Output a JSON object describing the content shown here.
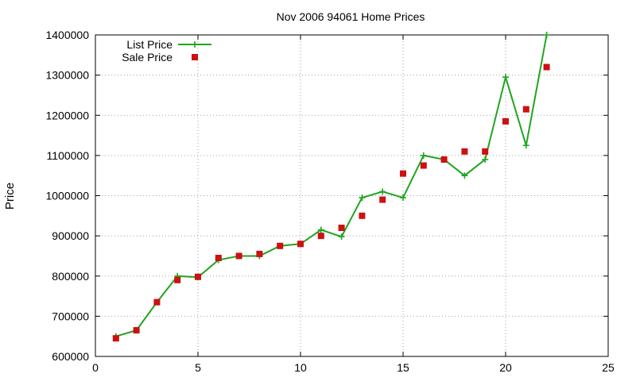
{
  "chart_data": {
    "type": "line",
    "title": "Nov 2006 94061 Home Prices",
    "xlabel": "",
    "ylabel": "Price",
    "xlim": [
      0,
      25
    ],
    "ylim": [
      600000,
      1400000
    ],
    "x_ticks": [
      0,
      5,
      10,
      15,
      20,
      25
    ],
    "y_ticks": [
      600000,
      700000,
      800000,
      900000,
      1000000,
      1100000,
      1200000,
      1300000,
      1400000
    ],
    "grid": true,
    "legend_position": "top-left",
    "series": [
      {
        "name": "List Price",
        "style": "line-with-plus-markers",
        "color": "#1fa51f",
        "x": [
          1,
          2,
          3,
          4,
          5,
          6,
          7,
          8,
          9,
          10,
          11,
          12,
          13,
          14,
          15,
          16,
          17,
          18,
          19,
          20,
          21,
          22
        ],
        "values": [
          650000,
          665000,
          735000,
          800000,
          797000,
          840000,
          850000,
          850000,
          875000,
          880000,
          915000,
          898000,
          995000,
          1010000,
          995000,
          1100000,
          1090000,
          1050000,
          1090000,
          1295000,
          1125000,
          1400000
        ]
      },
      {
        "name": "Sale Price",
        "style": "square-markers",
        "color": "#cc1111",
        "x": [
          1,
          2,
          3,
          4,
          5,
          6,
          7,
          8,
          9,
          10,
          11,
          12,
          13,
          14,
          15,
          16,
          17,
          18,
          19,
          20,
          21,
          22
        ],
        "values": [
          645000,
          665000,
          735000,
          790000,
          798000,
          845000,
          850000,
          855000,
          875000,
          880000,
          900000,
          920000,
          950000,
          990000,
          1055000,
          1075000,
          1090000,
          1110000,
          1110000,
          1185000,
          1215000,
          1320000
        ]
      }
    ]
  }
}
